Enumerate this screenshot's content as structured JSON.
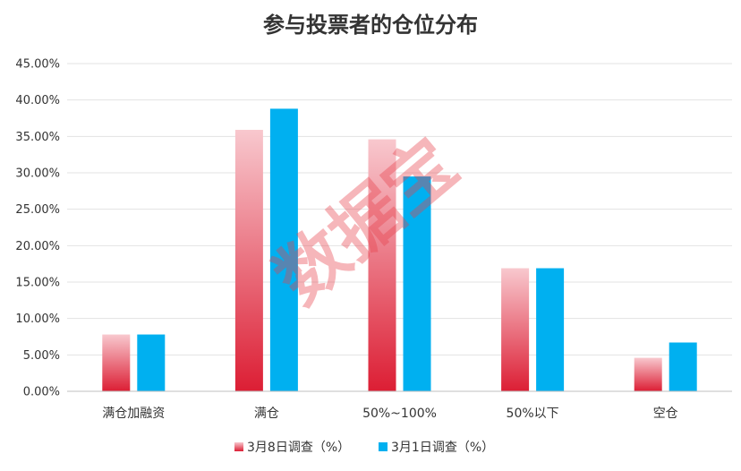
{
  "chart_data": {
    "type": "bar",
    "title": "参与投票者的仓位分布",
    "categories": [
      "满仓加融资",
      "满仓",
      "50%~100%",
      "50%以下",
      "空仓"
    ],
    "series": [
      {
        "name": "3月8日调查（%）",
        "values": [
          7.8,
          35.9,
          34.6,
          16.9,
          4.6
        ],
        "color": "#e0263c"
      },
      {
        "name": "3月1日调查（%）",
        "values": [
          7.8,
          38.8,
          29.5,
          16.9,
          6.7
        ],
        "color": "#00b0f0"
      }
    ],
    "ylim": [
      0,
      45
    ],
    "yticks": [
      "0.00%",
      "5.00%",
      "10.00%",
      "15.00%",
      "20.00%",
      "25.00%",
      "30.00%",
      "35.00%",
      "40.00%",
      "45.00%"
    ],
    "ytick_values": [
      0,
      5,
      10,
      15,
      20,
      25,
      30,
      35,
      40,
      45
    ],
    "grid": true,
    "legend_position": "bottom",
    "watermark": "数据宝"
  }
}
